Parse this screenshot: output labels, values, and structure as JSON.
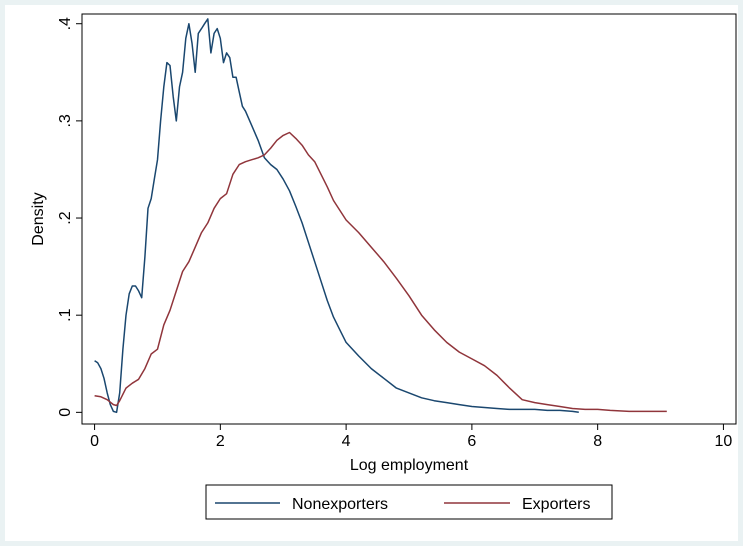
{
  "chart_data": {
    "type": "line",
    "title": "",
    "xlabel": "Log employment",
    "ylabel": "Density",
    "xlim": [
      -0.2,
      10.2
    ],
    "ylim": [
      -0.012,
      0.41
    ],
    "xticks": [
      0,
      2,
      4,
      6,
      8,
      10
    ],
    "xtick_labels": [
      "0",
      "2",
      "4",
      "6",
      "8",
      "10"
    ],
    "yticks": [
      0,
      0.1,
      0.2,
      0.3,
      0.4
    ],
    "ytick_labels": [
      "0",
      ".1",
      ".2",
      ".3",
      ".4"
    ],
    "grid": false,
    "legend_position": "bottom",
    "colors": {
      "nonexporters": "#1a476f",
      "exporters": "#90353b",
      "frame": "#000000",
      "outer_background": "#eaf2f3"
    },
    "series": [
      {
        "name": "Nonexporters",
        "x": [
          0,
          0.05,
          0.1,
          0.15,
          0.2,
          0.25,
          0.3,
          0.35,
          0.4,
          0.45,
          0.5,
          0.55,
          0.6,
          0.65,
          0.7,
          0.75,
          0.8,
          0.85,
          0.9,
          0.95,
          1.0,
          1.05,
          1.1,
          1.15,
          1.2,
          1.25,
          1.3,
          1.35,
          1.4,
          1.45,
          1.5,
          1.55,
          1.6,
          1.65,
          1.7,
          1.75,
          1.8,
          1.85,
          1.9,
          1.95,
          2.0,
          2.05,
          2.1,
          2.15,
          2.2,
          2.25,
          2.3,
          2.35,
          2.4,
          2.5,
          2.6,
          2.7,
          2.8,
          2.9,
          3.0,
          3.1,
          3.2,
          3.3,
          3.4,
          3.5,
          3.6,
          3.7,
          3.8,
          3.9,
          4.0,
          4.2,
          4.4,
          4.6,
          4.8,
          5.0,
          5.2,
          5.4,
          5.6,
          5.8,
          6.0,
          6.2,
          6.4,
          6.6,
          6.8,
          7.0,
          7.2,
          7.4,
          7.6,
          7.7
        ],
        "y": [
          0.053,
          0.051,
          0.045,
          0.035,
          0.02,
          0.008,
          0.001,
          0.0,
          0.02,
          0.065,
          0.1,
          0.122,
          0.13,
          0.13,
          0.125,
          0.118,
          0.16,
          0.21,
          0.22,
          0.24,
          0.26,
          0.3,
          0.335,
          0.36,
          0.357,
          0.325,
          0.3,
          0.335,
          0.35,
          0.385,
          0.4,
          0.38,
          0.35,
          0.39,
          0.395,
          0.4,
          0.405,
          0.37,
          0.39,
          0.395,
          0.385,
          0.36,
          0.37,
          0.365,
          0.345,
          0.345,
          0.33,
          0.315,
          0.31,
          0.295,
          0.28,
          0.262,
          0.255,
          0.25,
          0.24,
          0.228,
          0.212,
          0.195,
          0.175,
          0.155,
          0.135,
          0.115,
          0.098,
          0.085,
          0.072,
          0.058,
          0.045,
          0.035,
          0.025,
          0.02,
          0.015,
          0.012,
          0.01,
          0.008,
          0.006,
          0.005,
          0.004,
          0.003,
          0.003,
          0.003,
          0.002,
          0.002,
          0.001,
          0.0
        ]
      },
      {
        "name": "Exporters",
        "x": [
          0,
          0.1,
          0.2,
          0.3,
          0.35,
          0.4,
          0.5,
          0.6,
          0.7,
          0.8,
          0.9,
          1.0,
          1.1,
          1.2,
          1.3,
          1.4,
          1.5,
          1.6,
          1.7,
          1.8,
          1.9,
          2.0,
          2.1,
          2.2,
          2.3,
          2.4,
          2.5,
          2.6,
          2.7,
          2.8,
          2.9,
          3.0,
          3.1,
          3.2,
          3.3,
          3.4,
          3.5,
          3.6,
          3.7,
          3.8,
          4.0,
          4.2,
          4.4,
          4.6,
          4.8,
          5.0,
          5.2,
          5.4,
          5.6,
          5.8,
          6.0,
          6.2,
          6.4,
          6.6,
          6.8,
          7.0,
          7.2,
          7.4,
          7.6,
          7.8,
          8.0,
          8.2,
          8.5,
          8.8,
          9.1
        ],
        "y": [
          0.017,
          0.016,
          0.013,
          0.008,
          0.007,
          0.012,
          0.025,
          0.03,
          0.034,
          0.045,
          0.06,
          0.065,
          0.09,
          0.105,
          0.125,
          0.145,
          0.155,
          0.17,
          0.185,
          0.195,
          0.21,
          0.22,
          0.225,
          0.245,
          0.255,
          0.258,
          0.26,
          0.262,
          0.265,
          0.272,
          0.28,
          0.285,
          0.288,
          0.282,
          0.275,
          0.265,
          0.258,
          0.245,
          0.232,
          0.218,
          0.198,
          0.185,
          0.17,
          0.155,
          0.138,
          0.12,
          0.1,
          0.085,
          0.072,
          0.062,
          0.055,
          0.048,
          0.038,
          0.025,
          0.013,
          0.01,
          0.008,
          0.006,
          0.004,
          0.003,
          0.003,
          0.002,
          0.001,
          0.001,
          0.001
        ]
      }
    ]
  }
}
